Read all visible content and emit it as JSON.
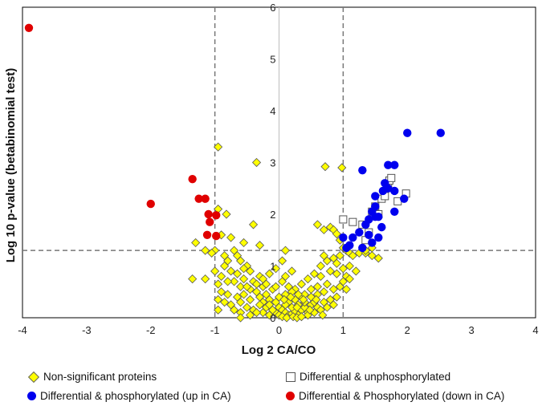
{
  "chart_data": {
    "type": "scatter",
    "title": "",
    "xlabel": "Log 2 CA/CO",
    "ylabel": "Log 10 p-value (betabinomial test)",
    "xlim": [
      -4,
      4
    ],
    "ylim": [
      0,
      6
    ],
    "x_ticks": [
      "-4",
      "-3",
      "-2",
      "-1",
      "0",
      "1",
      "2",
      "3",
      "4"
    ],
    "y_ticks": [
      "0",
      "1",
      "2",
      "3",
      "4",
      "5",
      "6"
    ],
    "thresholds": {
      "x": [
        -1,
        1
      ],
      "y": 1.3
    },
    "legend": {
      "nonsig": "Non-significant proteins",
      "unphos": "Differential & unphosphorylated",
      "up": "Differential & phosphorylated (up in CA)",
      "down": "Differential & Phosphorylated (down in CA)"
    },
    "colors": {
      "nonsig": "#ffff00",
      "unphos": "#ffffff",
      "up": "#0000ee",
      "down": "#e00000"
    },
    "series": [
      {
        "name": "Non-significant proteins",
        "key": "nonsig",
        "marker": "diamond",
        "points": [
          [
            -0.95,
            3.3
          ],
          [
            -0.35,
            3.0
          ],
          [
            0.72,
            2.92
          ],
          [
            0.98,
            2.9
          ],
          [
            -0.95,
            2.1
          ],
          [
            -0.82,
            2.0
          ],
          [
            -0.4,
            1.8
          ],
          [
            0.6,
            1.8
          ],
          [
            0.7,
            1.7
          ],
          [
            0.8,
            1.75
          ],
          [
            0.85,
            1.7
          ],
          [
            0.9,
            1.62
          ],
          [
            -0.9,
            1.6
          ],
          [
            -0.75,
            1.55
          ],
          [
            -0.55,
            1.45
          ],
          [
            -0.3,
            1.4
          ],
          [
            0.95,
            1.5
          ],
          [
            1.0,
            1.35
          ],
          [
            1.05,
            1.3
          ],
          [
            1.1,
            1.25
          ],
          [
            1.15,
            1.2
          ],
          [
            1.25,
            1.25
          ],
          [
            1.35,
            1.25
          ],
          [
            1.45,
            1.2
          ],
          [
            1.55,
            1.15
          ],
          [
            -0.7,
            1.3
          ],
          [
            -0.65,
            1.2
          ],
          [
            -0.6,
            1.1
          ],
          [
            -0.5,
            1.0
          ],
          [
            -0.45,
            0.9
          ],
          [
            -0.8,
            1.1
          ],
          [
            -0.85,
            1.0
          ],
          [
            -1.0,
            1.3
          ],
          [
            -1.05,
            1.25
          ],
          [
            -1.15,
            1.3
          ],
          [
            -1.35,
            0.75
          ],
          [
            -1.15,
            0.75
          ],
          [
            0.1,
            1.3
          ],
          [
            0.05,
            1.1
          ],
          [
            0.7,
            1.2
          ],
          [
            0.75,
            1.1
          ],
          [
            0.65,
            1.0
          ],
          [
            0.8,
            0.9
          ],
          [
            0.9,
            0.85
          ],
          [
            1.0,
            0.95
          ],
          [
            1.05,
            0.8
          ],
          [
            1.1,
            1.0
          ],
          [
            1.2,
            0.9
          ],
          [
            1.0,
            0.7
          ],
          [
            0.95,
            0.6
          ],
          [
            0.85,
            0.55
          ],
          [
            0.75,
            0.65
          ],
          [
            0.6,
            0.6
          ],
          [
            0.7,
            0.5
          ],
          [
            0.5,
            0.4
          ],
          [
            0.6,
            0.45
          ],
          [
            -0.9,
            0.5
          ],
          [
            -0.8,
            0.45
          ],
          [
            -0.7,
            0.7
          ],
          [
            -0.6,
            0.6
          ],
          [
            -0.55,
            0.75
          ],
          [
            -0.4,
            0.7
          ],
          [
            -0.35,
            0.5
          ],
          [
            -0.3,
            0.8
          ],
          [
            -0.25,
            0.6
          ],
          [
            -0.2,
            0.45
          ],
          [
            -0.15,
            0.35
          ],
          [
            -0.1,
            0.55
          ],
          [
            -0.05,
            0.3
          ],
          [
            0.0,
            0.2
          ],
          [
            0.05,
            0.15
          ],
          [
            0.1,
            0.1
          ],
          [
            0.15,
            0.05
          ],
          [
            0.2,
            0.08
          ],
          [
            0.25,
            0.12
          ],
          [
            0.3,
            0.05
          ],
          [
            0.35,
            0.15
          ],
          [
            0.4,
            0.2
          ],
          [
            0.45,
            0.1
          ],
          [
            0.5,
            0.25
          ],
          [
            0.55,
            0.3
          ],
          [
            0.3,
            0.25
          ],
          [
            0.2,
            0.2
          ],
          [
            0.15,
            0.3
          ],
          [
            0.1,
            0.25
          ],
          [
            0.25,
            0.35
          ],
          [
            0.35,
            0.4
          ],
          [
            0.4,
            0.45
          ],
          [
            -0.05,
            0.1
          ],
          [
            0.0,
            0.05
          ],
          [
            0.05,
            0.02
          ],
          [
            0.12,
            0.0
          ],
          [
            0.22,
            0.02
          ],
          [
            0.28,
            0.0
          ],
          [
            -0.1,
            0.15
          ],
          [
            -0.2,
            0.2
          ],
          [
            -0.25,
            0.3
          ],
          [
            -0.3,
            0.25
          ],
          [
            -0.45,
            0.35
          ],
          [
            -0.5,
            0.2
          ],
          [
            -0.6,
            0.3
          ],
          [
            -0.65,
            0.4
          ],
          [
            -0.75,
            0.25
          ],
          [
            -0.85,
            0.3
          ],
          [
            -0.95,
            0.35
          ],
          [
            -0.7,
            0.15
          ],
          [
            0.6,
            0.2
          ],
          [
            0.7,
            0.3
          ],
          [
            0.8,
            0.35
          ],
          [
            0.75,
            0.2
          ],
          [
            0.65,
            0.15
          ],
          [
            0.55,
            0.1
          ],
          [
            0.45,
            0.05
          ],
          [
            0.35,
            0.02
          ],
          [
            -0.15,
            0.05
          ],
          [
            -0.25,
            0.1
          ],
          [
            -0.4,
            0.15
          ],
          [
            -0.55,
            0.45
          ],
          [
            -0.45,
            0.55
          ],
          [
            -0.35,
            0.65
          ],
          [
            -0.25,
            0.75
          ],
          [
            -0.15,
            0.85
          ],
          [
            -0.05,
            0.95
          ],
          [
            0.05,
            0.7
          ],
          [
            0.15,
            0.6
          ],
          [
            0.25,
            0.55
          ],
          [
            0.35,
            0.65
          ],
          [
            0.45,
            0.75
          ],
          [
            0.55,
            0.85
          ],
          [
            0.65,
            0.8
          ],
          [
            0.85,
            1.15
          ],
          [
            0.9,
            1.05
          ],
          [
            0.95,
            1.2
          ],
          [
            -0.85,
            1.2
          ],
          [
            -0.75,
            0.9
          ],
          [
            -0.65,
            0.85
          ],
          [
            -0.55,
            0.95
          ],
          [
            -0.5,
            0.6
          ],
          [
            -0.9,
            0.8
          ],
          [
            -0.95,
            0.65
          ],
          [
            -1.0,
            0.9
          ],
          [
            -0.8,
            0.7
          ],
          [
            -1.3,
            1.45
          ],
          [
            1.35,
            1.3
          ],
          [
            1.45,
            1.35
          ],
          [
            0.5,
            0.55
          ],
          [
            0.4,
            0.3
          ],
          [
            0.3,
            0.45
          ],
          [
            0.2,
            0.5
          ],
          [
            -0.15,
            0.25
          ],
          [
            -0.3,
            0.4
          ],
          [
            -0.2,
            0.65
          ],
          [
            0.0,
            0.4
          ],
          [
            0.1,
            0.45
          ],
          [
            -0.05,
            0.6
          ],
          [
            0.08,
            0.35
          ],
          [
            0.18,
            0.4
          ],
          [
            0.28,
            0.2
          ],
          [
            0.38,
            0.35
          ],
          [
            0.48,
            0.15
          ],
          [
            0.58,
            0.35
          ],
          [
            -0.35,
            0.1
          ],
          [
            -0.45,
            0.05
          ],
          [
            -0.6,
            0.1
          ],
          [
            0.9,
            0.4
          ],
          [
            0.85,
            0.25
          ],
          [
            1.1,
            0.75
          ],
          [
            1.05,
            0.55
          ],
          [
            -0.95,
            0.15
          ],
          [
            -0.6,
            0.0
          ],
          [
            0.68,
            0.05
          ],
          [
            0.1,
            0.8
          ],
          [
            0.2,
            0.9
          ]
        ]
      },
      {
        "name": "Differential & unphosphorylated",
        "key": "unphos",
        "marker": "square",
        "points": [
          [
            1.0,
            1.9
          ],
          [
            1.15,
            1.85
          ],
          [
            1.3,
            1.8
          ],
          [
            1.45,
            2.05
          ],
          [
            1.5,
            2.15
          ],
          [
            1.55,
            2.0
          ],
          [
            1.6,
            2.3
          ],
          [
            1.65,
            2.35
          ],
          [
            1.7,
            2.55
          ],
          [
            1.72,
            2.65
          ],
          [
            1.75,
            2.7
          ],
          [
            1.98,
            2.4
          ],
          [
            1.85,
            2.25
          ],
          [
            1.4,
            1.65
          ],
          [
            1.35,
            1.5
          ]
        ]
      },
      {
        "name": "Differential & phosphorylated (up in CA)",
        "key": "up",
        "marker": "circle",
        "points": [
          [
            2.0,
            3.57
          ],
          [
            2.52,
            3.57
          ],
          [
            1.3,
            2.85
          ],
          [
            1.7,
            2.95
          ],
          [
            1.8,
            2.95
          ],
          [
            1.65,
            2.6
          ],
          [
            1.7,
            2.5
          ],
          [
            1.8,
            2.45
          ],
          [
            1.95,
            2.3
          ],
          [
            1.8,
            2.05
          ],
          [
            1.5,
            2.35
          ],
          [
            1.5,
            2.15
          ],
          [
            1.5,
            1.95
          ],
          [
            1.4,
            1.9
          ],
          [
            1.35,
            1.8
          ],
          [
            1.4,
            1.6
          ],
          [
            1.6,
            1.75
          ],
          [
            1.55,
            1.55
          ],
          [
            1.45,
            1.45
          ],
          [
            1.25,
            1.65
          ],
          [
            1.15,
            1.55
          ],
          [
            1.1,
            1.4
          ],
          [
            1.05,
            1.35
          ],
          [
            1.0,
            1.55
          ],
          [
            1.3,
            1.35
          ],
          [
            1.55,
            1.95
          ],
          [
            1.62,
            2.45
          ],
          [
            1.45,
            2.05
          ]
        ]
      },
      {
        "name": "Differential & Phosphorylated (down in CA)",
        "key": "down",
        "marker": "circle",
        "points": [
          [
            -3.9,
            5.6
          ],
          [
            -2.0,
            2.2
          ],
          [
            -1.35,
            2.68
          ],
          [
            -1.25,
            2.3
          ],
          [
            -1.15,
            2.3
          ],
          [
            -1.1,
            2.0
          ],
          [
            -0.98,
            1.98
          ],
          [
            -1.08,
            1.85
          ],
          [
            -1.12,
            1.6
          ],
          [
            -0.98,
            1.58
          ]
        ]
      }
    ]
  }
}
